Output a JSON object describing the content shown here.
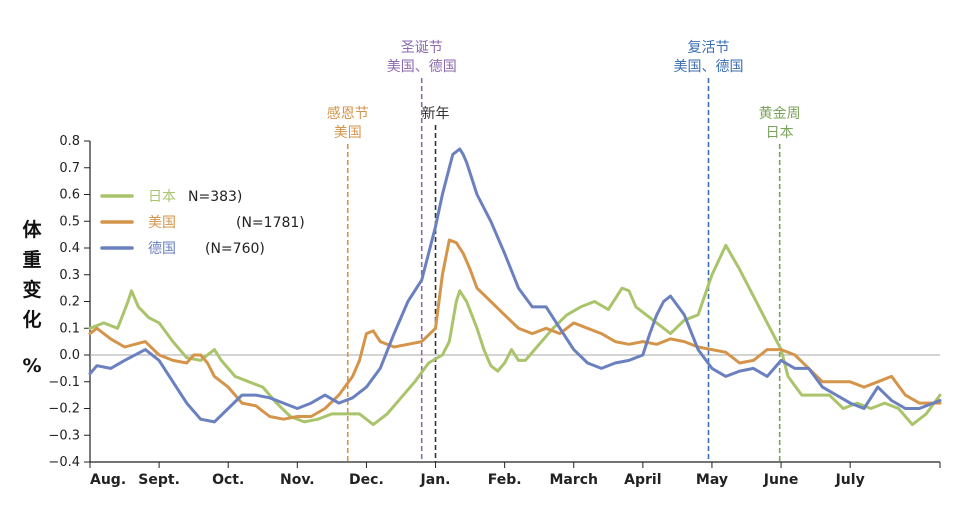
{
  "chart_data": {
    "type": "line",
    "title": "",
    "xlabel": "",
    "ylabel": "体重变化 %",
    "ylim": [
      -0.4,
      0.8
    ],
    "yticks": [
      -0.4,
      -0.3,
      -0.2,
      -0.1,
      0.0,
      0.1,
      0.2,
      0.3,
      0.4,
      0.5,
      0.6,
      0.7,
      0.8
    ],
    "ytick_labels": [
      "−0.4",
      "−0.3",
      "−0.2",
      "−0.1",
      "0.0",
      "0.1",
      "0.2",
      "0.3",
      "0.4",
      "0.5",
      "0.6",
      "0.7",
      "0.8"
    ],
    "x_unit": "month index (0 = start of Aug.)",
    "xlim": [
      0,
      12.3
    ],
    "months": [
      "Aug.",
      "Sept.",
      "Oct.",
      "Nov.",
      "Dec.",
      "Jan.",
      "Feb.",
      "March",
      "April",
      "May",
      "June",
      "July"
    ],
    "legend_position": "upper-left",
    "series": [
      {
        "name": "日本",
        "n": "N=383)",
        "color": "#a9c46a",
        "x": [
          0,
          0.2,
          0.4,
          0.55,
          0.6,
          0.7,
          0.85,
          1.0,
          1.2,
          1.4,
          1.6,
          1.8,
          1.9,
          2.0,
          2.1,
          2.3,
          2.5,
          2.7,
          2.9,
          3.1,
          3.3,
          3.5,
          3.7,
          3.9,
          4.1,
          4.3,
          4.5,
          4.7,
          4.9,
          5.1,
          5.2,
          5.3,
          5.35,
          5.45,
          5.6,
          5.7,
          5.8,
          5.9,
          6.0,
          6.1,
          6.2,
          6.3,
          6.5,
          6.7,
          6.9,
          7.1,
          7.3,
          7.5,
          7.7,
          7.8,
          7.9,
          8.0,
          8.2,
          8.4,
          8.6,
          8.8,
          9.0,
          9.2,
          9.4,
          9.6,
          9.8,
          10.0,
          10.1,
          10.3,
          10.5,
          10.7,
          10.9,
          11.1,
          11.3,
          11.5,
          11.7,
          11.9,
          12.1,
          12.3
        ],
        "values": [
          0.1,
          0.12,
          0.1,
          0.2,
          0.24,
          0.18,
          0.14,
          0.12,
          0.05,
          -0.01,
          -0.02,
          0.02,
          -0.02,
          -0.05,
          -0.08,
          -0.1,
          -0.12,
          -0.18,
          -0.23,
          -0.25,
          -0.24,
          -0.22,
          -0.22,
          -0.22,
          -0.26,
          -0.22,
          -0.16,
          -0.1,
          -0.03,
          0.0,
          0.05,
          0.2,
          0.24,
          0.2,
          0.1,
          0.02,
          -0.04,
          -0.06,
          -0.03,
          0.02,
          -0.02,
          -0.02,
          0.04,
          0.1,
          0.15,
          0.18,
          0.2,
          0.17,
          0.25,
          0.24,
          0.18,
          0.16,
          0.12,
          0.08,
          0.13,
          0.15,
          0.3,
          0.41,
          0.32,
          0.22,
          0.12,
          0.02,
          -0.08,
          -0.15,
          -0.15,
          -0.15,
          -0.2,
          -0.18,
          -0.2,
          -0.18,
          -0.2,
          -0.26,
          -0.22,
          -0.15
        ]
      },
      {
        "name": "美国",
        "n": "(N=1781)",
        "color": "#d4944a",
        "x": [
          0,
          0.1,
          0.3,
          0.5,
          0.8,
          1.0,
          1.2,
          1.4,
          1.5,
          1.6,
          1.7,
          1.8,
          2.0,
          2.2,
          2.4,
          2.6,
          2.8,
          3.0,
          3.2,
          3.4,
          3.6,
          3.8,
          3.9,
          4.0,
          4.1,
          4.2,
          4.4,
          4.6,
          4.8,
          5.0,
          5.1,
          5.2,
          5.3,
          5.4,
          5.5,
          5.6,
          5.8,
          6.0,
          6.2,
          6.4,
          6.6,
          6.8,
          7.0,
          7.2,
          7.4,
          7.6,
          7.8,
          8.0,
          8.2,
          8.4,
          8.6,
          8.8,
          9.0,
          9.2,
          9.4,
          9.6,
          9.8,
          10.0,
          10.2,
          10.4,
          10.6,
          10.8,
          11.0,
          11.2,
          11.4,
          11.6,
          11.8,
          12.0,
          12.3
        ],
        "values": [
          0.08,
          0.1,
          0.06,
          0.03,
          0.05,
          0.0,
          -0.02,
          -0.03,
          0.0,
          0.0,
          -0.03,
          -0.08,
          -0.12,
          -0.18,
          -0.19,
          -0.23,
          -0.24,
          -0.23,
          -0.23,
          -0.2,
          -0.15,
          -0.08,
          -0.02,
          0.08,
          0.09,
          0.05,
          0.03,
          0.04,
          0.05,
          0.1,
          0.3,
          0.43,
          0.42,
          0.38,
          0.32,
          0.25,
          0.2,
          0.15,
          0.1,
          0.08,
          0.1,
          0.08,
          0.12,
          0.1,
          0.08,
          0.05,
          0.04,
          0.05,
          0.04,
          0.06,
          0.05,
          0.03,
          0.02,
          0.01,
          -0.03,
          -0.02,
          0.02,
          0.02,
          0.0,
          -0.05,
          -0.1,
          -0.1,
          -0.1,
          -0.12,
          -0.1,
          -0.08,
          -0.15,
          -0.18,
          -0.18
        ]
      },
      {
        "name": "德国",
        "n": "(N=760)",
        "color": "#6b80bf",
        "x": [
          0,
          0.1,
          0.3,
          0.5,
          0.8,
          1.0,
          1.2,
          1.4,
          1.6,
          1.8,
          2.0,
          2.2,
          2.4,
          2.6,
          2.8,
          3.0,
          3.2,
          3.4,
          3.6,
          3.8,
          4.0,
          4.2,
          4.4,
          4.6,
          4.8,
          4.9,
          5.0,
          5.1,
          5.2,
          5.25,
          5.3,
          5.35,
          5.4,
          5.45,
          5.5,
          5.6,
          5.8,
          6.0,
          6.2,
          6.4,
          6.6,
          6.8,
          7.0,
          7.2,
          7.4,
          7.6,
          7.8,
          8.0,
          8.1,
          8.2,
          8.3,
          8.4,
          8.6,
          8.8,
          9.0,
          9.2,
          9.4,
          9.6,
          9.8,
          10.0,
          10.2,
          10.4,
          10.6,
          10.8,
          11.0,
          11.2,
          11.4,
          11.6,
          11.8,
          12.0,
          12.3
        ],
        "values": [
          -0.07,
          -0.04,
          -0.05,
          -0.02,
          0.02,
          -0.02,
          -0.1,
          -0.18,
          -0.24,
          -0.25,
          -0.2,
          -0.15,
          -0.15,
          -0.16,
          -0.18,
          -0.2,
          -0.18,
          -0.15,
          -0.18,
          -0.16,
          -0.12,
          -0.05,
          0.08,
          0.2,
          0.28,
          0.38,
          0.48,
          0.6,
          0.7,
          0.75,
          0.76,
          0.77,
          0.75,
          0.72,
          0.68,
          0.6,
          0.5,
          0.38,
          0.25,
          0.18,
          0.18,
          0.1,
          0.02,
          -0.03,
          -0.05,
          -0.03,
          -0.02,
          0.0,
          0.08,
          0.15,
          0.2,
          0.22,
          0.15,
          0.02,
          -0.05,
          -0.08,
          -0.06,
          -0.05,
          -0.08,
          -0.02,
          -0.05,
          -0.05,
          -0.12,
          -0.15,
          -0.18,
          -0.2,
          -0.12,
          -0.17,
          -0.2,
          -0.2,
          -0.17
        ]
      }
    ],
    "events": [
      {
        "label_lines": [
          "感恩节",
          "美国"
        ],
        "x": 3.73,
        "color": "#d4944a"
      },
      {
        "label_lines": [
          "圣诞节",
          "美国、德国"
        ],
        "x": 4.8,
        "color": "#8e6aad"
      },
      {
        "label_lines": [
          "新年"
        ],
        "x": 5.0,
        "color": "#333333"
      },
      {
        "label_lines": [
          "复活节",
          "美国、德国"
        ],
        "x": 8.95,
        "color": "#3a6fb4"
      },
      {
        "label_lines": [
          "黄金周",
          "日本"
        ],
        "x": 9.98,
        "color": "#7ca35c"
      }
    ]
  }
}
